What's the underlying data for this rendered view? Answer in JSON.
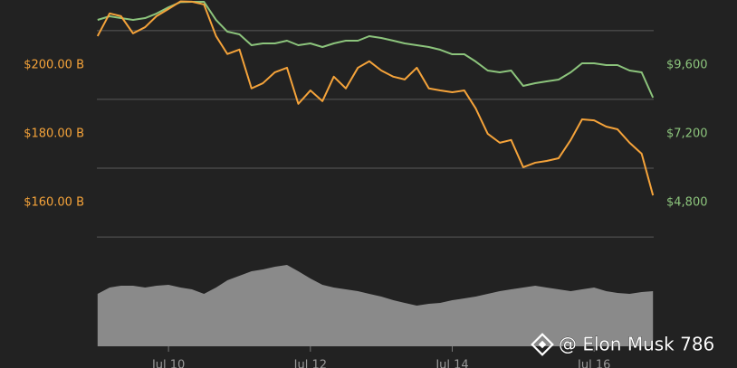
{
  "chart_data": {
    "type": "line",
    "x": [
      9,
      9.17,
      9.33,
      9.5,
      9.67,
      9.83,
      10,
      10.17,
      10.33,
      10.5,
      10.67,
      10.83,
      11,
      11.17,
      11.33,
      11.5,
      11.67,
      11.83,
      12,
      12.17,
      12.33,
      12.5,
      12.67,
      12.83,
      13,
      13.17,
      13.33,
      13.5,
      13.67,
      13.83,
      14,
      14.17,
      14.33,
      14.5,
      14.67,
      14.83,
      15,
      15.17,
      15.33,
      15.5,
      15.67,
      15.83,
      16,
      16.17,
      16.33,
      16.5,
      16.67,
      16.83
    ],
    "xlim": [
      8.99,
      16.84
    ],
    "xticks": [
      {
        "value": 10,
        "label": "Jul 10"
      },
      {
        "value": 12,
        "label": "Jul 12"
      },
      {
        "value": 14,
        "label": "Jul 14"
      },
      {
        "value": 16,
        "label": "Jul 16"
      }
    ],
    "ylim": [
      149.5,
      218.9
    ],
    "yticks": [
      {
        "value": 200,
        "label": "$200.00 B"
      },
      {
        "value": 180,
        "label": "$180.00 B"
      },
      {
        "value": 160,
        "label": "$160.00 B"
      }
    ],
    "ygrid": [
      210,
      190,
      170,
      150
    ],
    "y2lim": [
      3537,
      11874
    ],
    "y2ticks": [
      {
        "value": 9600,
        "label": "$9,600"
      },
      {
        "value": 7200,
        "label": "$7,200"
      },
      {
        "value": 4800,
        "label": "$4,800"
      }
    ],
    "series": [
      {
        "color": "#f5a33a",
        "values": [
          208.4,
          215,
          214.2,
          209.2,
          211,
          214.2,
          216.3,
          218.5,
          218.4,
          217.6,
          208.4,
          203.2,
          204.5,
          193.2,
          194.7,
          197.9,
          199.2,
          188.7,
          192.6,
          189.5,
          196.6,
          193.2,
          199.2,
          201.1,
          198.4,
          196.6,
          195.8,
          199.2,
          193.2,
          192.6,
          192.1,
          192.6,
          187.4,
          180,
          177.4,
          178.2,
          170.3,
          171.6,
          172.1,
          172.9,
          178.2,
          184.2,
          183.9,
          182.1,
          181.3,
          177.4,
          174.2,
          162.1
        ]
      },
      {
        "color": "#8cc47c",
        "axis": "y2",
        "values": [
          11179,
          11305,
          11242,
          11179,
          11242,
          11400,
          11621,
          11800,
          11810,
          11810,
          11179,
          10768,
          10674,
          10295,
          10358,
          10358,
          10453,
          10295,
          10358,
          10232,
          10358,
          10453,
          10453,
          10611,
          10547,
          10453,
          10358,
          10295,
          10232,
          10137,
          9979,
          9979,
          9726,
          9411,
          9347,
          9411,
          8874,
          8968,
          9032,
          9095,
          9347,
          9663,
          9663,
          9600,
          9600,
          9411,
          9347,
          8463
        ]
      }
    ],
    "volume": {
      "color": "#8a8a8a",
      "vlim": [
        0,
        100
      ],
      "values": [
        58,
        65,
        67,
        67,
        65,
        67,
        68,
        65,
        63,
        58,
        65,
        73,
        78,
        83,
        85,
        88,
        90,
        83,
        75,
        68,
        65,
        63,
        61,
        58,
        55,
        51,
        48,
        45,
        47,
        48,
        51,
        53,
        55,
        58,
        61,
        63,
        65,
        67,
        65,
        63,
        61,
        63,
        65,
        61,
        59,
        58,
        60,
        61
      ]
    },
    "watermark": "@ Elon Musk 786"
  }
}
